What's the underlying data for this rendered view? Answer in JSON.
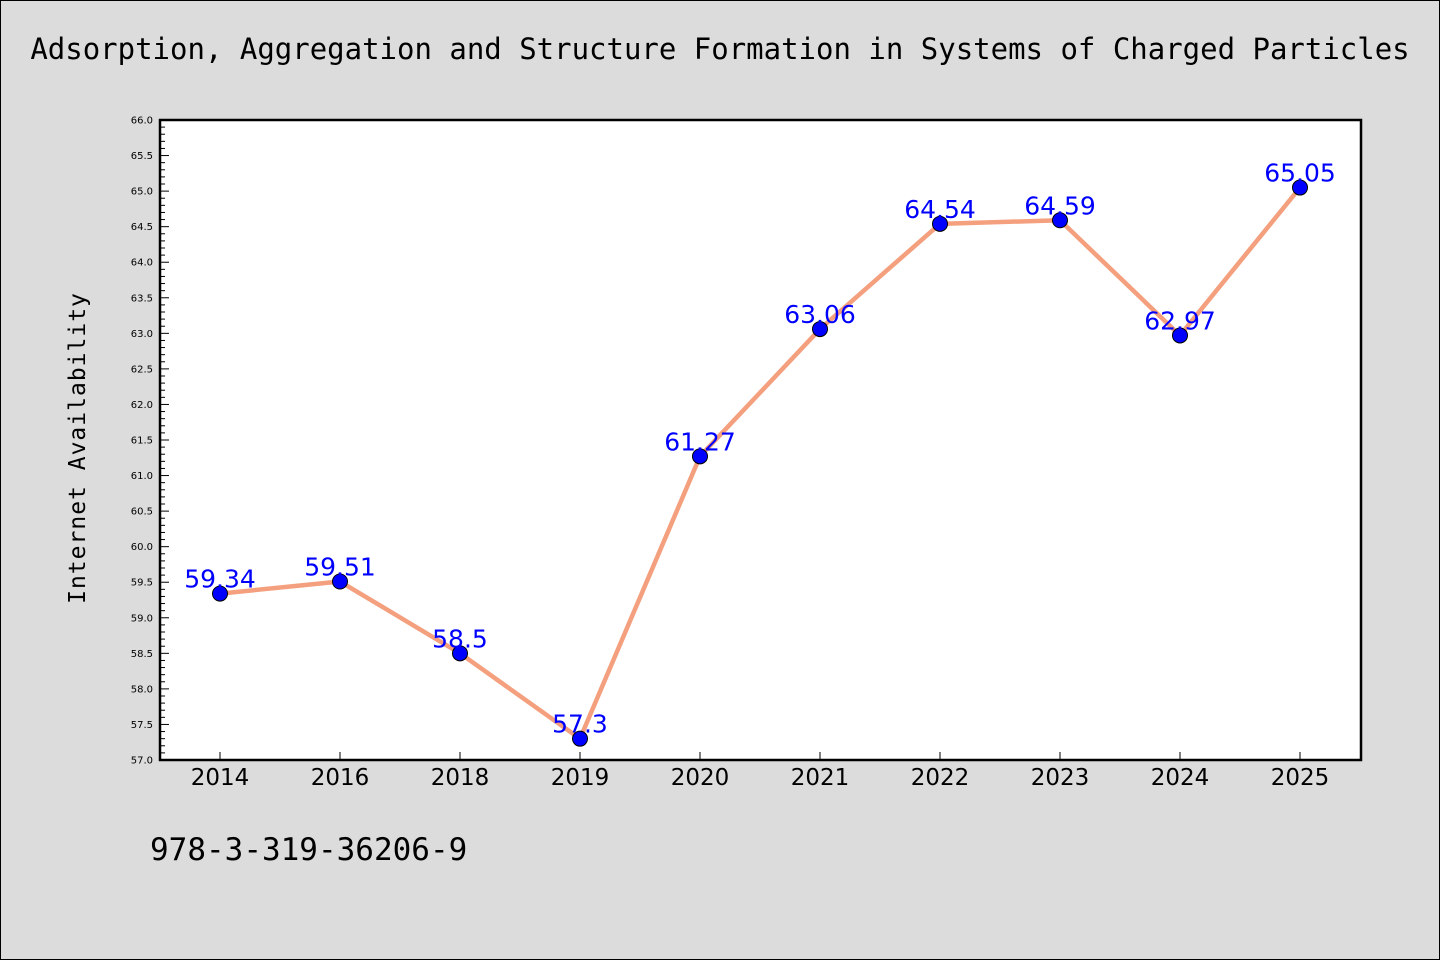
{
  "title": "Adsorption, Aggregation and Structure Formation in Systems of Charged Particles",
  "footnote": "978-3-319-36206-9",
  "colors": {
    "background": "#dcdcdc",
    "plot_background": "#ffffff",
    "line": "#f4a07e",
    "marker": "#0000ff",
    "data_label": "#0000ff"
  },
  "chart_data": {
    "type": "line",
    "title": "Adsorption, Aggregation and Structure Formation in Systems of Charged Particles",
    "xlabel": "",
    "ylabel": "Internet Availability",
    "categories": [
      "2014",
      "2016",
      "2018",
      "2019",
      "2020",
      "2021",
      "2022",
      "2023",
      "2024",
      "2025"
    ],
    "series": [
      {
        "values": [
          59.34,
          59.51,
          58.5,
          57.3,
          61.27,
          63.06,
          64.54,
          64.59,
          62.97,
          65.05
        ]
      }
    ],
    "data_labels": [
      "59.34",
      "59.51",
      "58.5",
      "57.3",
      "61.27",
      "63.06",
      "64.54",
      "64.59",
      "62.97",
      "65.05"
    ],
    "ylim": [
      57.0,
      66.0
    ],
    "yticks": [
      "57.0",
      "57.5",
      "58.0",
      "58.5",
      "59.0",
      "59.5",
      "60.0",
      "60.5",
      "61.0",
      "61.5",
      "62.0",
      "62.5",
      "63.0",
      "63.5",
      "64.0",
      "64.5",
      "65.0",
      "65.5",
      "66.0"
    ],
    "grid": false,
    "legend": "none"
  }
}
